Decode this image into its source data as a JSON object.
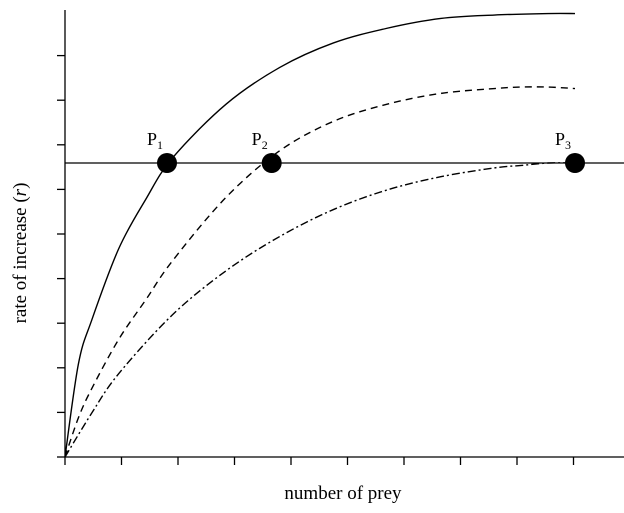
{
  "chart_data": {
    "type": "line",
    "title": "",
    "xlabel": "number of prey",
    "ylabel_main": "rate of increase (",
    "ylabel_var": "r",
    "ylabel_close": ")",
    "xlim": [
      0,
      10
    ],
    "ylim": [
      -6,
      3
    ],
    "reference_line_y": 0,
    "grid": false,
    "legend": "none",
    "x_tick_count": 11,
    "y_tick_count": 10,
    "series": [
      {
        "style": "solid",
        "x": [
          0,
          0.25,
          0.5,
          1,
          1.5,
          2,
          3,
          4,
          5,
          6,
          7,
          8,
          9,
          9.5
        ],
        "y": [
          -6,
          -4.1,
          -3.2,
          -1.75,
          -0.75,
          0.1,
          1.2,
          1.95,
          2.45,
          2.75,
          2.95,
          3.02,
          3.05,
          3.05
        ]
      },
      {
        "style": "dashed",
        "x": [
          0,
          0.25,
          0.5,
          1,
          1.5,
          2,
          3,
          4,
          5,
          6,
          7,
          8,
          8.5,
          9,
          9.5
        ],
        "y": [
          -6,
          -5.2,
          -4.6,
          -3.6,
          -2.8,
          -2.0,
          -0.7,
          0.25,
          0.85,
          1.2,
          1.42,
          1.52,
          1.55,
          1.55,
          1.52
        ]
      },
      {
        "style": "dashdot",
        "x": [
          0,
          0.5,
          1,
          2,
          3,
          4,
          5,
          6,
          7,
          8,
          8.5,
          9,
          9.5
        ],
        "y": [
          -6,
          -5.1,
          -4.3,
          -3.1,
          -2.2,
          -1.5,
          -0.95,
          -0.55,
          -0.28,
          -0.1,
          -0.05,
          0,
          0
        ]
      }
    ],
    "points": [
      {
        "label": "P",
        "sub": "1",
        "x": 1.9,
        "y": 0
      },
      {
        "label": "P",
        "sub": "2",
        "x": 3.85,
        "y": 0
      },
      {
        "label": "P",
        "sub": "3",
        "x": 9.5,
        "y": 0
      }
    ]
  }
}
